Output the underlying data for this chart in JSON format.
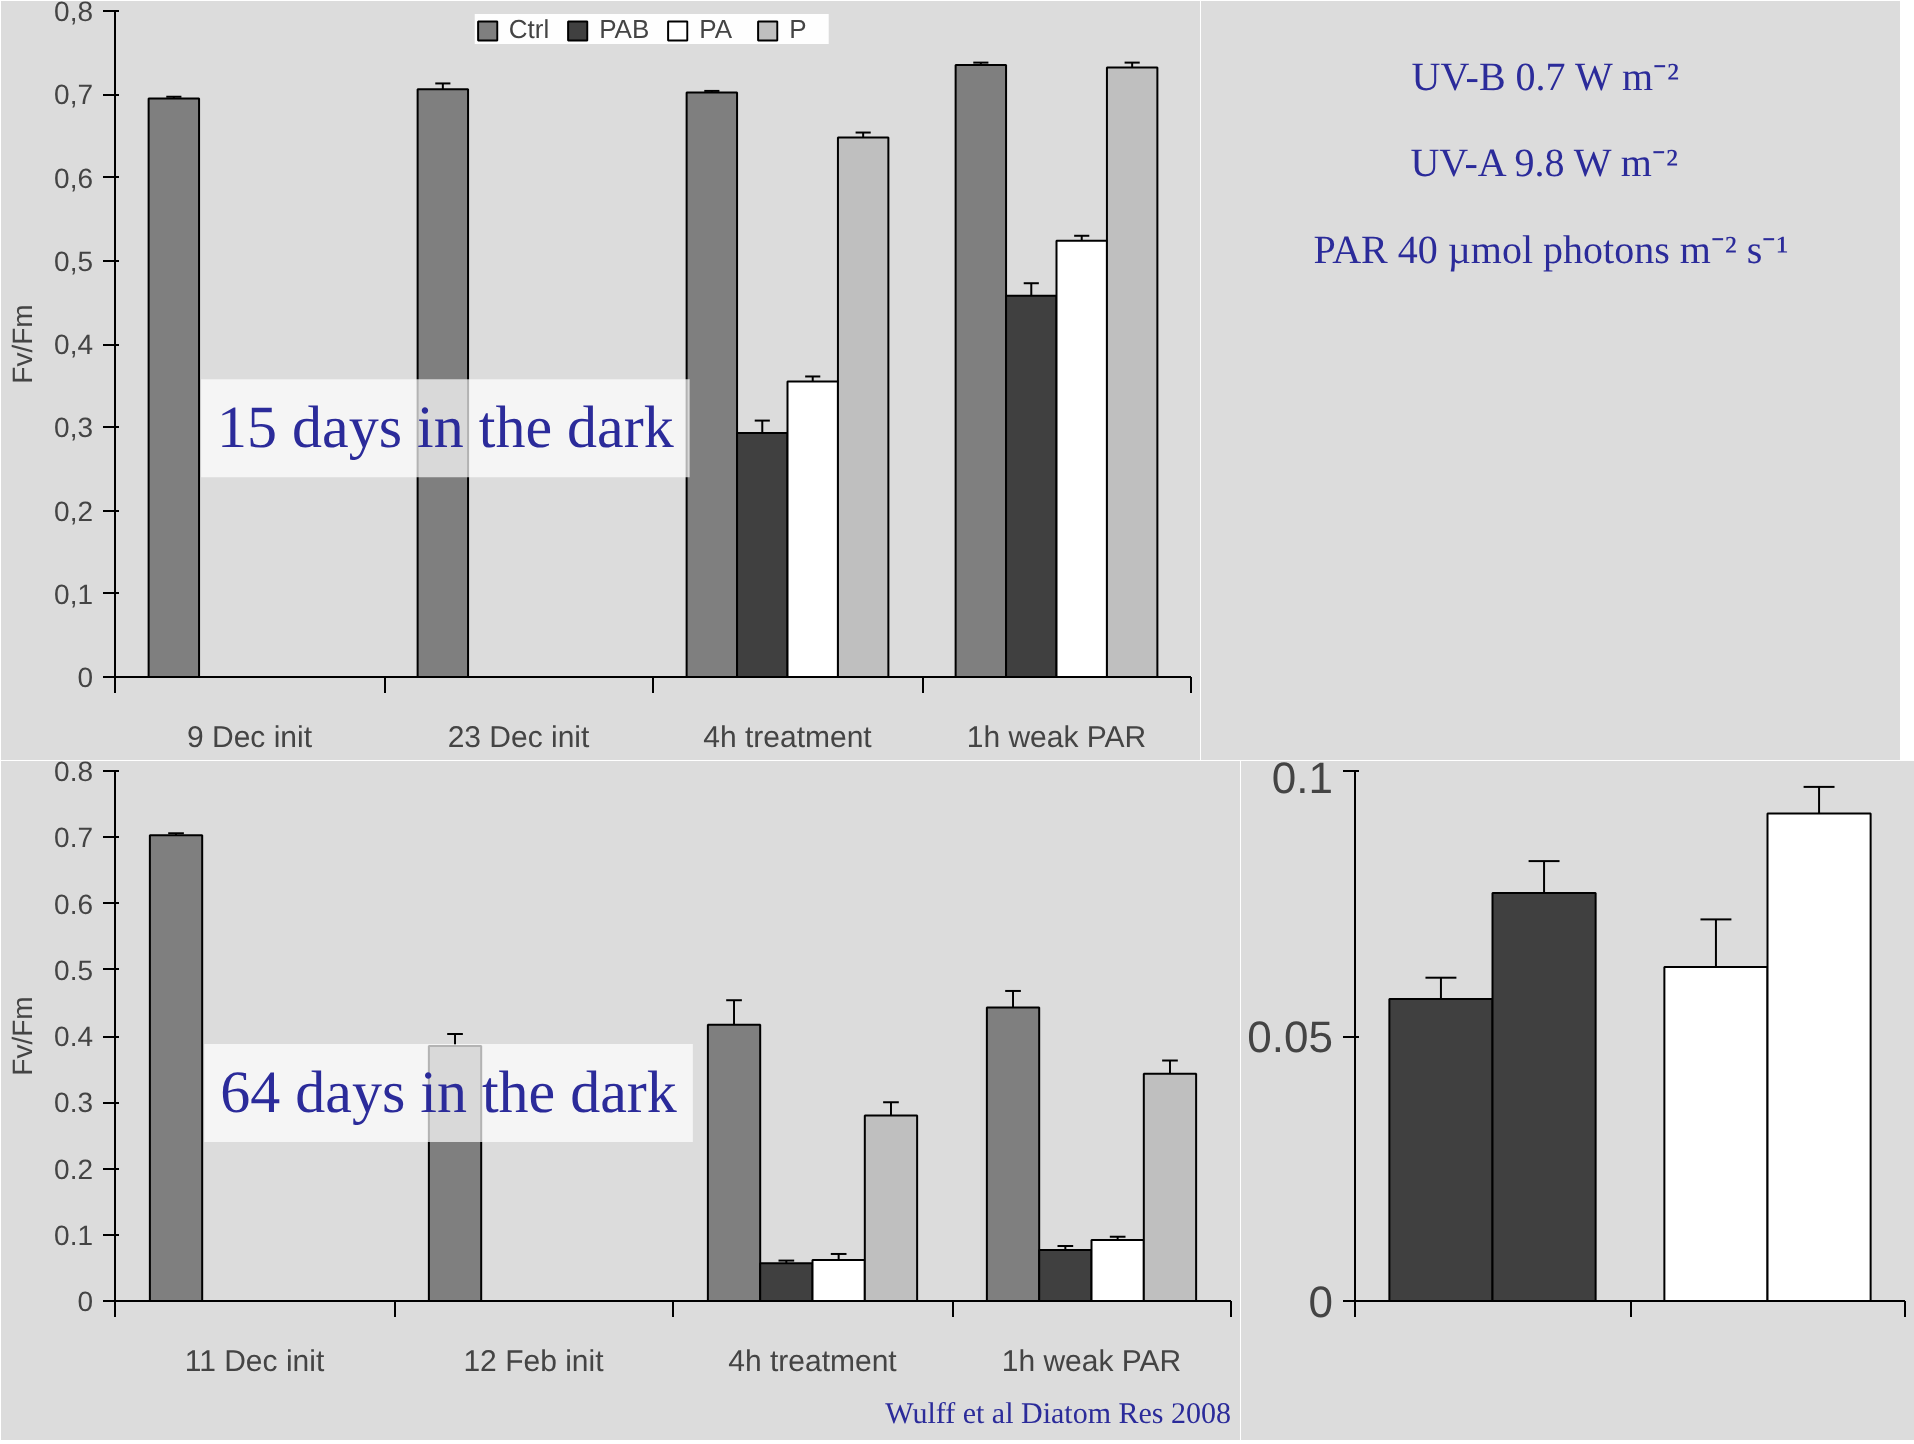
{
  "chart_data": [
    {
      "type": "bar",
      "ylabel": "Fv/Fm",
      "categories": [
        "9 Dec init",
        "23 Dec init",
        "4h treatment",
        "1h weak PAR"
      ],
      "ylim": [
        0,
        0.8
      ],
      "yticks": [
        0,
        {
          "value": 0.1,
          "label": "0,1"
        },
        {
          "value": 0.2,
          "label": "0,2"
        },
        {
          "value": 0.3,
          "label": "0,3"
        },
        {
          "value": 0.4,
          "label": "0,4"
        },
        {
          "value": 0.5,
          "label": "0,5"
        },
        {
          "value": 0.6,
          "label": "0,6"
        },
        {
          "value": 0.7,
          "label": "0,7"
        },
        {
          "value": 0.8,
          "label": "0,8"
        }
      ],
      "legend": "top",
      "grid": false,
      "annotations": [
        "15 days in the dark"
      ],
      "series": [
        {
          "name": "Ctrl",
          "color": "#7f7f7f",
          "values": [
            0.695,
            0.706,
            0.702,
            0.735
          ],
          "errors": [
            0.002,
            0.007,
            0.002,
            0.003
          ]
        },
        {
          "name": "PAB",
          "color": "#404040",
          "values": [
            null,
            null,
            0.293,
            0.458
          ],
          "errors": [
            null,
            null,
            0.015,
            0.015
          ]
        },
        {
          "name": "PA",
          "color": "#ffffff",
          "values": [
            null,
            null,
            0.355,
            0.524
          ],
          "errors": [
            null,
            null,
            0.006,
            0.006
          ]
        },
        {
          "name": "P",
          "color": "#bfbfbf",
          "values": [
            null,
            null,
            0.648,
            0.732
          ],
          "errors": [
            null,
            null,
            0.006,
            0.006
          ]
        }
      ]
    },
    {
      "type": "other",
      "annotations": [
        "UV-B 0.7  W m⁻²",
        "UV-A 9.8  W m⁻²",
        "PAR 40 µmol photons m⁻² s⁻¹"
      ]
    },
    {
      "type": "bar",
      "ylabel": "Fv/Fm",
      "categories": [
        "11 Dec init",
        "12 Feb init",
        "4h treatment",
        "1h weak PAR"
      ],
      "ylim": [
        0,
        0.8
      ],
      "yticks": [
        0,
        0.1,
        0.2,
        0.3,
        0.4,
        0.5,
        0.6,
        0.7,
        0.8
      ],
      "grid": false,
      "annotations": [
        "64 days in the dark",
        "Wulff et al Diatom Res 2008"
      ],
      "series": [
        {
          "color": "#7f7f7f",
          "values": [
            0.703,
            0.385,
            0.417,
            0.443
          ],
          "errors": [
            0.003,
            0.018,
            0.037,
            0.025
          ]
        },
        {
          "color": "#404040",
          "values": [
            null,
            null,
            0.057,
            0.077
          ],
          "errors": [
            null,
            null,
            0.004,
            0.006
          ]
        },
        {
          "color": "#ffffff",
          "values": [
            null,
            null,
            0.062,
            0.092
          ],
          "errors": [
            null,
            null,
            0.009,
            0.005
          ]
        },
        {
          "color": "#bfbfbf",
          "values": [
            null,
            null,
            0.28,
            0.343
          ],
          "errors": [
            null,
            null,
            0.02,
            0.02
          ]
        }
      ]
    },
    {
      "type": "bar",
      "categories": [
        null,
        null
      ],
      "ylim": [
        0,
        0.1
      ],
      "yticks": [
        0,
        0.05,
        0.1
      ],
      "tick_labels": "y",
      "grid": false,
      "series": [
        {
          "colors": [
            "#404040",
            "#ffffff"
          ],
          "values": [
            0.057,
            0.063
          ],
          "errors": [
            0.004,
            0.009
          ]
        },
        {
          "colors": [
            "#404040",
            "#ffffff"
          ],
          "values": [
            0.077,
            0.092
          ],
          "errors": [
            0.006,
            0.005
          ]
        }
      ]
    }
  ]
}
